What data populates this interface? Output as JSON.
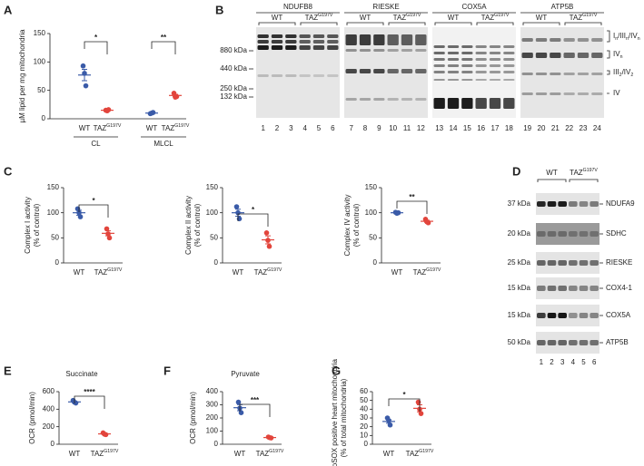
{
  "panel_letters": [
    "A",
    "B",
    "C",
    "D",
    "E",
    "F",
    "G"
  ],
  "chart_data": [
    {
      "type": "dotplot",
      "y_label": [
        "µM lipid per mg mitochondria"
      ],
      "ylim": [
        0,
        150
      ],
      "yticks": [
        0,
        50,
        100,
        150
      ],
      "colors": [
        "#3a5ba8",
        "#e2453c"
      ],
      "groups": [
        {
          "label": "CL",
          "categories": [
            "WT",
            "TAZ"
          ],
          "superscripts": [
            null,
            "G197V"
          ],
          "points": [
            [
              93,
              80,
              58
            ],
            [
              15,
              14,
              16
            ]
          ],
          "means": [
            77,
            15
          ],
          "sems": [
            10,
            0.6
          ],
          "significance": "*"
        },
        {
          "label": "MLCL",
          "categories": [
            "WT",
            "TAZ"
          ],
          "superscripts": [
            null,
            "G197V"
          ],
          "points": [
            [
              9,
              10,
              11
            ],
            [
              45,
              38,
              39
            ]
          ],
          "means": [
            10,
            41
          ],
          "sems": [
            0.6,
            2
          ],
          "significance": "**"
        }
      ]
    },
    {
      "type": "dotplot",
      "y_label": [
        "Complex I activity",
        "(% of control)"
      ],
      "ylim": [
        0,
        150
      ],
      "yticks": [
        0,
        50,
        100,
        150
      ],
      "colors": [
        "#3a5ba8",
        "#e2453c"
      ],
      "groups": [
        {
          "categories": [
            "WT",
            "TAZ"
          ],
          "superscripts": [
            null,
            "G197V"
          ],
          "points": [
            [
              108,
              100,
              92
            ],
            [
              68,
              58,
              50
            ]
          ],
          "means": [
            100,
            59
          ],
          "sems": [
            5,
            5
          ],
          "significance": "*"
        }
      ]
    },
    {
      "type": "dotplot",
      "y_label": [
        "Complex II activity",
        "(% of control)"
      ],
      "ylim": [
        0,
        150
      ],
      "yticks": [
        0,
        50,
        100,
        150
      ],
      "colors": [
        "#3a5ba8",
        "#e2453c"
      ],
      "groups": [
        {
          "categories": [
            "WT",
            "TAZ"
          ],
          "superscripts": [
            null,
            "G197V"
          ],
          "points": [
            [
              112,
              100,
              88
            ],
            [
              60,
              45,
              33
            ]
          ],
          "means": [
            100,
            46
          ],
          "sems": [
            7,
            8
          ],
          "significance": "*"
        }
      ]
    },
    {
      "type": "dotplot",
      "y_label": [
        "Complex IV activity",
        "(% of control)"
      ],
      "ylim": [
        0,
        150
      ],
      "yticks": [
        0,
        50,
        100,
        150
      ],
      "colors": [
        "#3a5ba8",
        "#e2453c"
      ],
      "groups": [
        {
          "categories": [
            "WT",
            "TAZ"
          ],
          "superscripts": [
            null,
            "G197V"
          ],
          "points": [
            [
              101,
              99,
              100
            ],
            [
              87,
              82,
              80
            ]
          ],
          "means": [
            100,
            83
          ],
          "sems": [
            1,
            2
          ],
          "significance": "**"
        }
      ]
    },
    {
      "type": "dotplot",
      "title": "Succinate",
      "y_label": [
        "OCR (pmol/min)"
      ],
      "ylim": [
        0,
        600
      ],
      "yticks": [
        0,
        200,
        400,
        600
      ],
      "colors": [
        "#3a5ba8",
        "#e2453c"
      ],
      "groups": [
        {
          "categories": [
            "WT",
            "TAZ"
          ],
          "superscripts": [
            null,
            "G197V"
          ],
          "points": [
            [
              500,
              480,
              470
            ],
            [
              130,
              115,
              110
            ]
          ],
          "means": [
            483,
            118
          ],
          "sems": [
            9,
            6
          ],
          "significance": "****"
        }
      ]
    },
    {
      "type": "dotplot",
      "title": "Pyruvate",
      "y_label": [
        "OCR (pmol/min)"
      ],
      "ylim": [
        0,
        400
      ],
      "yticks": [
        0,
        100,
        200,
        300,
        400
      ],
      "colors": [
        "#3a5ba8",
        "#e2453c"
      ],
      "groups": [
        {
          "categories": [
            "WT",
            "TAZ"
          ],
          "superscripts": [
            null,
            "G197V"
          ],
          "points": [
            [
              320,
              275,
              240
            ],
            [
              55,
              50,
              48
            ]
          ],
          "means": [
            278,
            51
          ],
          "sems": [
            23,
            2
          ],
          "significance": "***"
        }
      ]
    },
    {
      "type": "dotplot",
      "y_label": [
        "MitoSOX positive heart mitochondria",
        "(% of total mitochondria)"
      ],
      "ylim": [
        0,
        60
      ],
      "yticks": [
        0,
        10,
        20,
        30,
        40,
        50,
        60
      ],
      "colors": [
        "#3a5ba8",
        "#e2453c"
      ],
      "groups": [
        {
          "categories": [
            "WT",
            "TAZ"
          ],
          "superscripts": [
            null,
            "G197V"
          ],
          "points": [
            [
              30,
              27,
              22
            ],
            [
              48,
              40,
              35
            ]
          ],
          "means": [
            26,
            41
          ],
          "sems": [
            2,
            4
          ],
          "significance": "*"
        }
      ]
    }
  ],
  "blot_b": {
    "antibodies": [
      "NDUFB8",
      "RIESKE",
      "COX5A",
      "ATP5B"
    ],
    "genotypes": [
      "WT",
      "TAZ"
    ],
    "genotype_superscripts": [
      null,
      "G197V"
    ],
    "markers": [
      "880 kDa",
      "440 kDa",
      "250 kDa",
      "132 kDa"
    ],
    "lanes": [
      1,
      2,
      3,
      4,
      5,
      6,
      7,
      8,
      9,
      10,
      11,
      12,
      13,
      14,
      15,
      16,
      17,
      18,
      19,
      20,
      21,
      22,
      23,
      24
    ],
    "band_labels": [
      [
        [
          "I",
          "n"
        ],
        [
          "/III",
          "n"
        ],
        [
          "/IV",
          "n"
        ]
      ],
      [
        [
          "IV",
          "n"
        ]
      ],
      [
        [
          "III",
          "2"
        ],
        [
          "/IV",
          "2"
        ]
      ],
      [
        [
          "IV"
        ]
      ]
    ]
  },
  "blot_d": {
    "genotypes": [
      "WT",
      "TAZ"
    ],
    "genotype_superscripts": [
      null,
      "G197V"
    ],
    "markers": [
      "37 kDa",
      "20 kDa",
      "25 kDa",
      "15 kDa",
      "15 kDa",
      "50 kDa"
    ],
    "proteins": [
      "NDUFA9",
      "SDHC",
      "RIESKE",
      "COX4-1",
      "COX5A",
      "ATP5B"
    ],
    "lanes": [
      1,
      2,
      3,
      4,
      5,
      6
    ]
  }
}
